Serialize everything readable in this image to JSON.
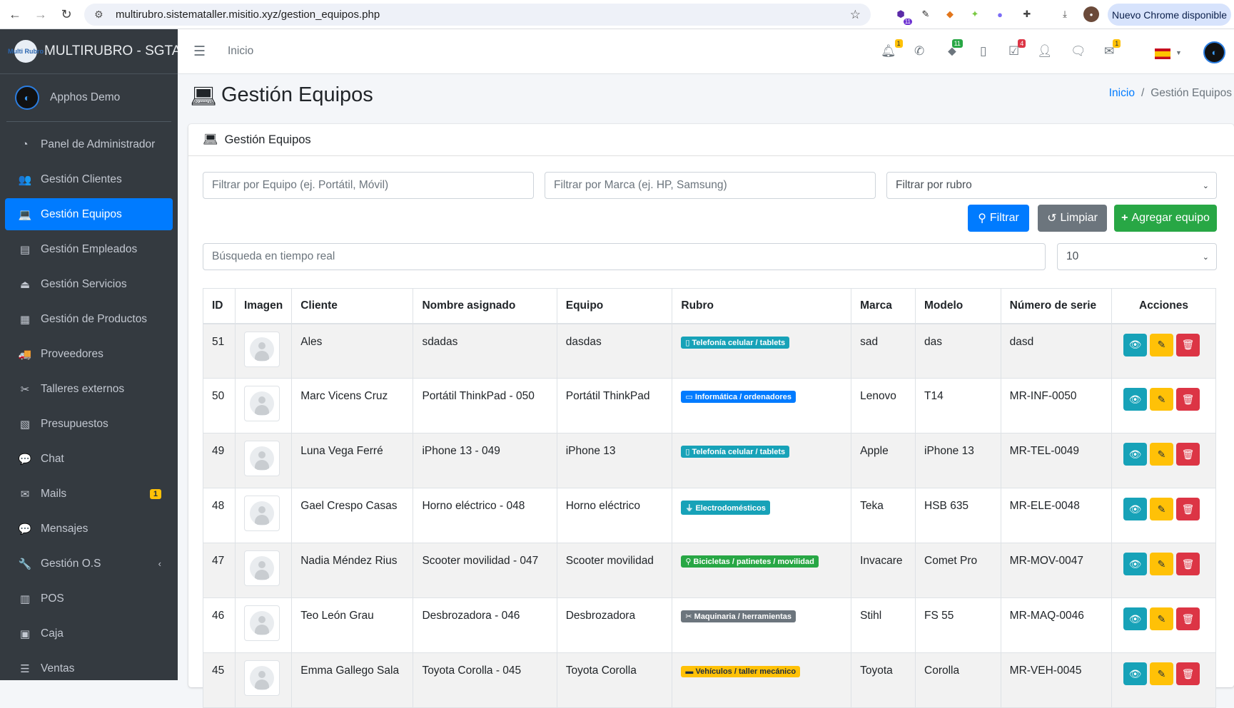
{
  "browser": {
    "url": "multirubro.sistemataller.misitio.xyz/gestion_equipos.php",
    "update_button": "Nuevo Chrome disponible",
    "ext_badge": "11"
  },
  "sidebar": {
    "brand": "MULTIRUBRO - SGTA OS",
    "logo_text": "Multi Rubro",
    "user": "Apphos Demo",
    "items": [
      {
        "label": "Panel de Administrador",
        "icon": "gauge-icon",
        "glyph": "◔"
      },
      {
        "label": "Gestión Clientes",
        "icon": "users-icon",
        "glyph": "👥"
      },
      {
        "label": "Gestión Equipos",
        "icon": "laptop-icon",
        "glyph": "💻",
        "active": true
      },
      {
        "label": "Gestión Empleados",
        "icon": "id-card-icon",
        "glyph": "▤"
      },
      {
        "label": "Gestión Servicios",
        "icon": "bell-concierge-icon",
        "glyph": "⏏"
      },
      {
        "label": "Gestión de Productos",
        "icon": "boxes-icon",
        "glyph": "▦"
      },
      {
        "label": "Proveedores",
        "icon": "truck-icon",
        "glyph": "🚚"
      },
      {
        "label": "Talleres externos",
        "icon": "tools-icon",
        "glyph": "✂"
      },
      {
        "label": "Presupuestos",
        "icon": "invoice-icon",
        "glyph": "▧"
      },
      {
        "label": "Chat",
        "icon": "comments-icon",
        "glyph": "💬"
      },
      {
        "label": "Mails",
        "icon": "envelope-icon",
        "glyph": "✉",
        "badge": "1"
      },
      {
        "label": "Mensajes",
        "icon": "comment-dots-icon",
        "glyph": "💬"
      },
      {
        "label": "Gestión O.S",
        "icon": "wrench-icon",
        "glyph": "🔧",
        "chevron": "‹"
      },
      {
        "label": "POS",
        "icon": "cash-register-icon",
        "glyph": "▥"
      },
      {
        "label": "Caja",
        "icon": "wallet-icon",
        "glyph": "▣"
      },
      {
        "label": "Ventas",
        "icon": "list-icon",
        "glyph": "☰"
      }
    ]
  },
  "topbar": {
    "home": "Inicio",
    "badges": {
      "notifications": "1",
      "tags": "11",
      "tasks": "4",
      "mail": "1"
    }
  },
  "page": {
    "title": "Gestión Equipos",
    "breadcrumb_home": "Inicio",
    "breadcrumb_current": "Gestión Equipos",
    "card_title": "Gestión Equipos"
  },
  "filters": {
    "equipo_placeholder": "Filtrar por Equipo (ej. Portátil, Móvil)",
    "marca_placeholder": "Filtrar por Marca (ej. HP, Samsung)",
    "rubro_value": "Filtrar por rubro",
    "filtrar": "Filtrar",
    "limpiar": "Limpiar",
    "agregar": "Agregar equipo",
    "search_placeholder": "Búsqueda en tiempo real",
    "page_size": "10"
  },
  "colors": {
    "primary": "#007bff",
    "info": "#17a2b8",
    "success": "#28a745",
    "warning": "#ffc107",
    "danger": "#dc3545",
    "secondary": "#6c757d"
  },
  "table": {
    "headers": [
      "ID",
      "Imagen",
      "Cliente",
      "Nombre asignado",
      "Equipo",
      "Rubro",
      "Marca",
      "Modelo",
      "Número de serie",
      "Acciones"
    ],
    "rows": [
      {
        "id": "51",
        "cliente": "Ales",
        "nombre": "sdadas",
        "equipo": "dasdas",
        "rubro": "Telefonía celular / tablets",
        "rubro_icon": "mobile-icon",
        "rubro_glyph": "▯",
        "rubro_color": "#17a2b8",
        "marca": "sad",
        "modelo": "das",
        "serie": "dasd"
      },
      {
        "id": "50",
        "cliente": "Marc Vicens Cruz",
        "nombre": "Portátil ThinkPad - 050",
        "equipo": "Portátil ThinkPad",
        "rubro": "Informática / ordenadores",
        "rubro_icon": "desktop-icon",
        "rubro_glyph": "▭",
        "rubro_color": "#007bff",
        "marca": "Lenovo",
        "modelo": "T14",
        "serie": "MR-INF-0050"
      },
      {
        "id": "49",
        "cliente": "Luna Vega Ferré",
        "nombre": "iPhone 13 - 049",
        "equipo": "iPhone 13",
        "rubro": "Telefonía celular / tablets",
        "rubro_icon": "mobile-icon",
        "rubro_glyph": "▯",
        "rubro_color": "#17a2b8",
        "marca": "Apple",
        "modelo": "iPhone 13",
        "serie": "MR-TEL-0049"
      },
      {
        "id": "48",
        "cliente": "Gael Crespo Casas",
        "nombre": "Horno eléctrico - 048",
        "equipo": "Horno eléctrico",
        "rubro": "Electrodomésticos",
        "rubro_icon": "plug-icon",
        "rubro_glyph": "⏚",
        "rubro_color": "#17a2b8",
        "marca": "Teka",
        "modelo": "HSB 635",
        "serie": "MR-ELE-0048"
      },
      {
        "id": "47",
        "cliente": "Nadia Méndez Rius",
        "nombre": "Scooter movilidad - 047",
        "equipo": "Scooter movilidad",
        "rubro": "Bicicletas / patinetes / movilidad",
        "rubro_icon": "bicycle-icon",
        "rubro_glyph": "⚲",
        "rubro_color": "#28a745",
        "marca": "Invacare",
        "modelo": "Comet Pro",
        "serie": "MR-MOV-0047"
      },
      {
        "id": "46",
        "cliente": "Teo León Grau",
        "nombre": "Desbrozadora - 046",
        "equipo": "Desbrozadora",
        "rubro": "Maquinaria / herramientas",
        "rubro_icon": "tools-icon",
        "rubro_glyph": "✂",
        "rubro_color": "#6c757d",
        "marca": "Stihl",
        "modelo": "FS 55",
        "serie": "MR-MAQ-0046"
      },
      {
        "id": "45",
        "cliente": "Emma Gallego Sala",
        "nombre": "Toyota Corolla - 045",
        "equipo": "Toyota Corolla",
        "rubro": "Vehículos / taller mecánico",
        "rubro_icon": "car-icon",
        "rubro_glyph": "▬",
        "rubro_color": "#ffc107",
        "marca": "Toyota",
        "modelo": "Corolla",
        "serie": "MR-VEH-0045"
      }
    ]
  }
}
